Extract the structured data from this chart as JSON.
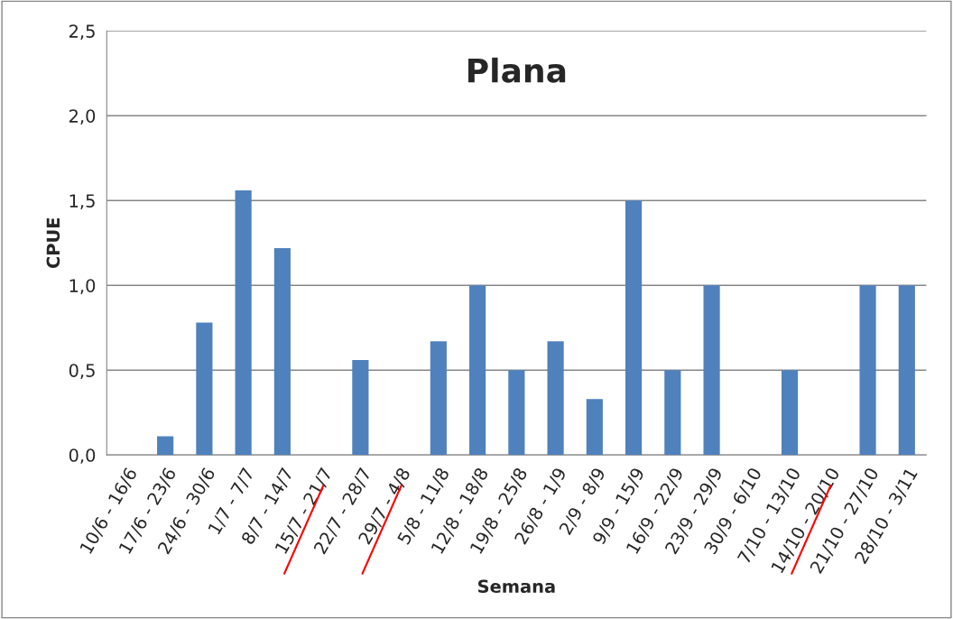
{
  "chart_data": {
    "type": "bar",
    "title": "Plana",
    "xlabel": "Semana",
    "ylabel": "CPUE",
    "categories": [
      "10/6 - 16/6",
      "17/6 - 23/6",
      "24/6 - 30/6",
      "1/7 - 7/7",
      "8/7 - 14/7",
      "15/7 - 21/7",
      "22/7 - 28/7",
      "29/7 - 4/8",
      "5/8 - 11/8",
      "12/8 - 18/8",
      "19/8 - 25/8",
      "26/8 - 1/9",
      "2/9 - 8/9",
      "9/9 - 15/9",
      "16/9 - 22/9",
      "23/9 - 29/9",
      "30/9 - 6/10",
      "7/10 - 13/10",
      "14/10 - 20/10",
      "21/10 - 27/10",
      "28/10 - 3/11"
    ],
    "values": [
      0,
      0.11,
      0.78,
      1.56,
      1.22,
      0,
      0.56,
      0,
      0.67,
      1.0,
      0.5,
      0.67,
      0.33,
      1.5,
      0.5,
      1.0,
      0,
      0.5,
      0,
      1.0,
      1.0
    ],
    "color": "#4f81bd",
    "ylim": [
      0,
      2.5
    ],
    "yticks": [
      {
        "value": 0,
        "label": "0,0"
      },
      {
        "value": 0.5,
        "label": "0,5"
      },
      {
        "value": 1.0,
        "label": "1,0"
      },
      {
        "value": 1.5,
        "label": "1,5"
      },
      {
        "value": 2.0,
        "label": "2,0"
      },
      {
        "value": 2.5,
        "label": "2,5"
      }
    ],
    "grid": "y",
    "legend": false
  }
}
